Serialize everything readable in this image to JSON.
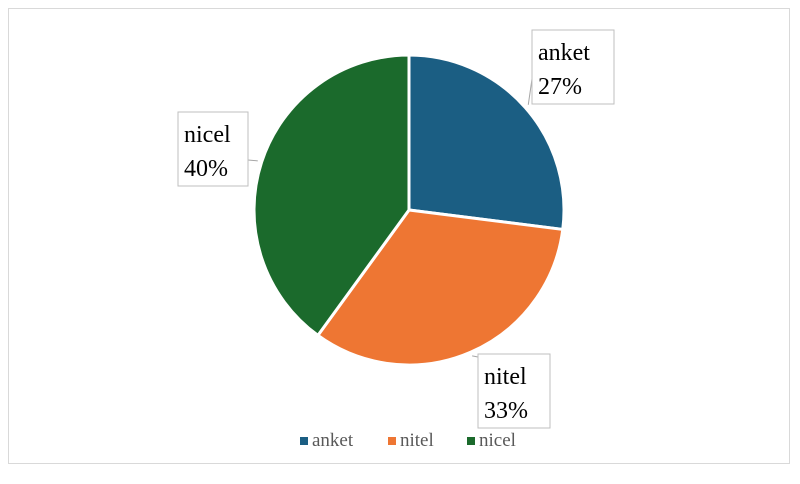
{
  "chart_data": {
    "type": "pie",
    "categories": [
      "anket",
      "nitel",
      "nicel"
    ],
    "values": [
      27,
      33,
      40
    ],
    "value_labels": [
      "27%",
      "33%",
      "40%"
    ],
    "colors": [
      "#1b5e83",
      "#ee7633",
      "#1b6a2c"
    ],
    "start_angle_deg": 0,
    "direction": "clockwise",
    "legend": "bottom"
  }
}
